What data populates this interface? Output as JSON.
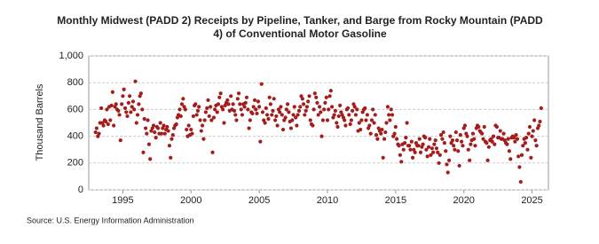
{
  "chart_data": {
    "type": "scatter",
    "title": "Monthly Midwest (PADD 2) Receipts by Pipeline, Tanker, and Barge from Rocky Mountain (PADD 4) of Conventional Motor Gasoline",
    "y_label": "Thousand Barrels",
    "source": "Source: U.S. Energy Information Administration",
    "color": "#a31d1d",
    "grid": true,
    "xlim": [
      1992.5,
      2026.2
    ],
    "xticks": [
      1995,
      2000,
      2005,
      2010,
      2015,
      2020,
      2025
    ],
    "ylim": [
      0,
      1000
    ],
    "yticks": [
      0,
      200,
      400,
      600,
      800,
      {
        "value": 1000,
        "label": "1,000"
      }
    ],
    "x": [
      1993,
      1993.08,
      1993.17,
      1993.25,
      1993.33,
      1993.42,
      1993.5,
      1993.58,
      1993.67,
      1993.75,
      1993.83,
      1993.92,
      1994,
      1994.08,
      1994.17,
      1994.25,
      1994.33,
      1994.42,
      1994.5,
      1994.58,
      1994.67,
      1994.75,
      1994.83,
      1994.92,
      1995,
      1995.08,
      1995.17,
      1995.25,
      1995.33,
      1995.42,
      1995.5,
      1995.58,
      1995.67,
      1995.75,
      1995.83,
      1995.92,
      1996,
      1996.08,
      1996.17,
      1996.25,
      1996.33,
      1996.42,
      1996.5,
      1996.58,
      1996.67,
      1996.75,
      1996.83,
      1996.92,
      1997,
      1997.08,
      1997.17,
      1997.25,
      1997.33,
      1997.42,
      1997.5,
      1997.58,
      1997.67,
      1997.75,
      1997.83,
      1997.92,
      1998,
      1998.08,
      1998.17,
      1998.25,
      1998.33,
      1998.42,
      1998.5,
      1998.58,
      1998.67,
      1998.75,
      1998.83,
      1998.92,
      1999,
      1999.08,
      1999.17,
      1999.25,
      1999.33,
      1999.42,
      1999.5,
      1999.58,
      1999.67,
      1999.75,
      1999.83,
      1999.92,
      2000,
      2000.08,
      2000.17,
      2000.25,
      2000.33,
      2000.42,
      2000.5,
      2000.58,
      2000.67,
      2000.75,
      2000.83,
      2000.92,
      2001,
      2001.08,
      2001.17,
      2001.25,
      2001.33,
      2001.42,
      2001.5,
      2001.58,
      2001.67,
      2001.75,
      2001.83,
      2001.92,
      2002,
      2002.08,
      2002.17,
      2002.25,
      2002.33,
      2002.42,
      2002.5,
      2002.58,
      2002.67,
      2002.75,
      2002.83,
      2002.92,
      2003,
      2003.08,
      2003.17,
      2003.25,
      2003.33,
      2003.42,
      2003.5,
      2003.58,
      2003.67,
      2003.75,
      2003.83,
      2003.92,
      2004,
      2004.08,
      2004.17,
      2004.25,
      2004.33,
      2004.42,
      2004.5,
      2004.58,
      2004.67,
      2004.75,
      2004.83,
      2004.92,
      2005,
      2005.08,
      2005.17,
      2005.25,
      2005.33,
      2005.42,
      2005.5,
      2005.58,
      2005.67,
      2005.75,
      2005.83,
      2005.92,
      2006,
      2006.08,
      2006.17,
      2006.25,
      2006.33,
      2006.42,
      2006.5,
      2006.58,
      2006.67,
      2006.75,
      2006.83,
      2006.92,
      2007,
      2007.08,
      2007.17,
      2007.25,
      2007.33,
      2007.42,
      2007.5,
      2007.58,
      2007.67,
      2007.75,
      2007.83,
      2007.92,
      2008,
      2008.08,
      2008.17,
      2008.25,
      2008.33,
      2008.42,
      2008.5,
      2008.58,
      2008.67,
      2008.75,
      2008.83,
      2008.92,
      2009,
      2009.08,
      2009.17,
      2009.25,
      2009.33,
      2009.42,
      2009.5,
      2009.58,
      2009.67,
      2009.75,
      2009.83,
      2009.92,
      2010,
      2010.08,
      2010.17,
      2010.25,
      2010.33,
      2010.42,
      2010.5,
      2010.58,
      2010.67,
      2010.75,
      2010.83,
      2010.92,
      2011,
      2011.08,
      2011.17,
      2011.25,
      2011.33,
      2011.42,
      2011.5,
      2011.58,
      2011.67,
      2011.75,
      2011.83,
      2011.92,
      2012,
      2012.08,
      2012.17,
      2012.25,
      2012.33,
      2012.42,
      2012.5,
      2012.58,
      2012.67,
      2012.75,
      2012.83,
      2012.92,
      2013,
      2013.08,
      2013.17,
      2013.25,
      2013.33,
      2013.42,
      2013.5,
      2013.58,
      2013.67,
      2013.75,
      2013.83,
      2013.92,
      2014,
      2014.08,
      2014.17,
      2014.25,
      2014.33,
      2014.42,
      2014.5,
      2014.58,
      2014.67,
      2014.75,
      2014.83,
      2014.92,
      2015,
      2015.08,
      2015.17,
      2015.25,
      2015.33,
      2015.42,
      2015.5,
      2015.58,
      2015.67,
      2015.75,
      2015.83,
      2015.92,
      2016,
      2016.08,
      2016.17,
      2016.25,
      2016.33,
      2016.42,
      2016.5,
      2016.58,
      2016.67,
      2016.75,
      2016.83,
      2016.92,
      2017,
      2017.08,
      2017.17,
      2017.25,
      2017.33,
      2017.42,
      2017.5,
      2017.58,
      2017.67,
      2017.75,
      2017.83,
      2017.92,
      2018,
      2018.08,
      2018.17,
      2018.25,
      2018.33,
      2018.42,
      2018.5,
      2018.58,
      2018.67,
      2018.75,
      2018.83,
      2018.92,
      2019,
      2019.08,
      2019.17,
      2019.25,
      2019.33,
      2019.42,
      2019.5,
      2019.58,
      2019.67,
      2019.75,
      2019.83,
      2019.92,
      2020,
      2020.08,
      2020.17,
      2020.25,
      2020.33,
      2020.42,
      2020.5,
      2020.58,
      2020.67,
      2020.75,
      2020.83,
      2020.92,
      2021,
      2021.08,
      2021.17,
      2021.25,
      2021.33,
      2021.42,
      2021.5,
      2021.58,
      2021.67,
      2021.75,
      2021.83,
      2021.92,
      2022,
      2022.08,
      2022.17,
      2022.25,
      2022.33,
      2022.42,
      2022.5,
      2022.58,
      2022.67,
      2022.75,
      2022.83,
      2022.92,
      2023,
      2023.08,
      2023.17,
      2023.25,
      2023.33,
      2023.42,
      2023.5,
      2023.58,
      2023.67,
      2023.75,
      2023.83,
      2023.92,
      2024,
      2024.08,
      2024.17,
      2024.25,
      2024.33,
      2024.42,
      2024.5,
      2024.58,
      2024.67,
      2024.75,
      2024.83,
      2024.92,
      2025,
      2025.08,
      2025.17,
      2025.25,
      2025.33,
      2025.42,
      2025.5,
      2025.58,
      2025.67
    ],
    "values": [
      430,
      460,
      400,
      420,
      500,
      610,
      500,
      480,
      520,
      510,
      600,
      490,
      620,
      520,
      630,
      730,
      480,
      620,
      640,
      600,
      590,
      560,
      370,
      640,
      700,
      750,
      610,
      580,
      550,
      650,
      700,
      580,
      620,
      660,
      600,
      810,
      500,
      560,
      640,
      700,
      720,
      600,
      280,
      530,
      460,
      420,
      520,
      340,
      230,
      440,
      460,
      480,
      430,
      390,
      470,
      460,
      420,
      500,
      420,
      460,
      480,
      420,
      450,
      470,
      440,
      330,
      240,
      380,
      410,
      460,
      480,
      490,
      540,
      560,
      600,
      550,
      640,
      680,
      620,
      600,
      450,
      400,
      480,
      410,
      450,
      420,
      550,
      630,
      640,
      560,
      590,
      620,
      520,
      440,
      480,
      380,
      520,
      580,
      610,
      670,
      550,
      620,
      520,
      280,
      540,
      600,
      630,
      580,
      640,
      690,
      720,
      620,
      600,
      500,
      630,
      650,
      670,
      640,
      590,
      700,
      600,
      640,
      590,
      560,
      520,
      680,
      720,
      640,
      600,
      560,
      640,
      620,
      650,
      690,
      600,
      460,
      520,
      580,
      570,
      620,
      670,
      600,
      570,
      660,
      620,
      360,
      790,
      580,
      520,
      500,
      610,
      560,
      530,
      690,
      640,
      560,
      590,
      680,
      520,
      550,
      480,
      600,
      580,
      620,
      560,
      450,
      520,
      540,
      600,
      640,
      580,
      510,
      460,
      520,
      560,
      620,
      540,
      480,
      560,
      590,
      620,
      700,
      680,
      640,
      560,
      590,
      620,
      660,
      700,
      520,
      490,
      480,
      600,
      720,
      690,
      650,
      560,
      620,
      580,
      400,
      520,
      600,
      650,
      690,
      520,
      600,
      700,
      740,
      620,
      540,
      560,
      590,
      500,
      470,
      550,
      630,
      580,
      560,
      540,
      520,
      480,
      600,
      610,
      560,
      490,
      520,
      590,
      640,
      620,
      560,
      600,
      440,
      500,
      450,
      520,
      580,
      600,
      610,
      520,
      560,
      460,
      480,
      420,
      520,
      600,
      500,
      560,
      410,
      380,
      460,
      440,
      420,
      450,
      240,
      380,
      430,
      500,
      620,
      560,
      520,
      600,
      560,
      400,
      420,
      470,
      380,
      340,
      330,
      260,
      210,
      340,
      300,
      350,
      390,
      500,
      330,
      330,
      300,
      360,
      240,
      300,
      280,
      350,
      330,
      330,
      380,
      280,
      320,
      340,
      400,
      390,
      300,
      250,
      320,
      380,
      260,
      310,
      280,
      340,
      370,
      310,
      280,
      200,
      260,
      410,
      380,
      430,
      350,
      290,
      190,
      130,
      220,
      400,
      350,
      370,
      330,
      300,
      430,
      370,
      290,
      180,
      410,
      360,
      330,
      460,
      480,
      420,
      400,
      300,
      220,
      340,
      370,
      420,
      380,
      330,
      460,
      480,
      470,
      440,
      430,
      420,
      380,
      470,
      360,
      350,
      220,
      320,
      370,
      380,
      360,
      400,
      340,
      480,
      470,
      390,
      390,
      440,
      380,
      380,
      420,
      370,
      350,
      340,
      380,
      290,
      230,
      390,
      400,
      390,
      360,
      410,
      380,
      250,
      170,
      60,
      260,
      330,
      380,
      350,
      390,
      300,
      420,
      470,
      240,
      400,
      440,
      520,
      370,
      330,
      460,
      480,
      510,
      610
    ]
  }
}
